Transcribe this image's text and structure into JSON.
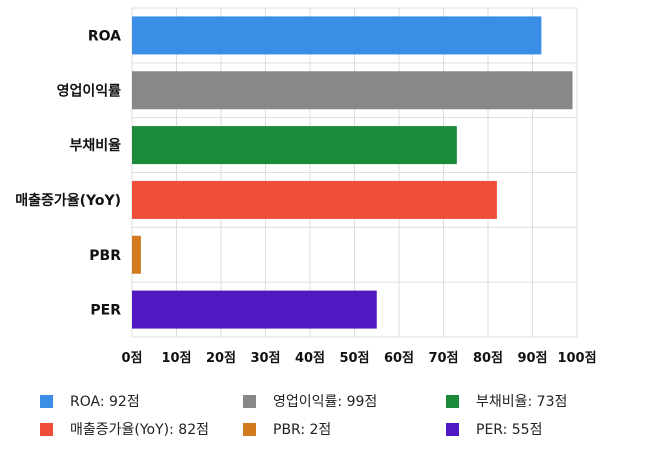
{
  "chart_data": {
    "type": "bar",
    "orientation": "horizontal",
    "categories": [
      "ROA",
      "영업이익률",
      "부채비율",
      "매출증가율(YoY)",
      "PBR",
      "PER"
    ],
    "values": [
      92,
      99,
      73,
      82,
      2,
      55
    ],
    "colors": [
      "#3a8ee6",
      "#888888",
      "#1b8a3a",
      "#ee4e3a",
      "#d27a1e",
      "#5018c0"
    ],
    "xlim": [
      0,
      100
    ],
    "xticks": [
      0,
      10,
      20,
      30,
      40,
      50,
      60,
      70,
      80,
      90,
      100
    ],
    "tick_suffix": "점",
    "grid": true,
    "legend_position": "bottom",
    "legend": [
      {
        "label": "ROA: 92점",
        "color": "#3a8ee6"
      },
      {
        "label": "영업이익률: 99점",
        "color": "#888888"
      },
      {
        "label": "부채비율: 73점",
        "color": "#1b8a3a"
      },
      {
        "label": "매출증가율(YoY): 82점",
        "color": "#ee4e3a"
      },
      {
        "label": "PBR: 2점",
        "color": "#d27a1e"
      },
      {
        "label": "PER: 55점",
        "color": "#5018c0"
      }
    ]
  }
}
